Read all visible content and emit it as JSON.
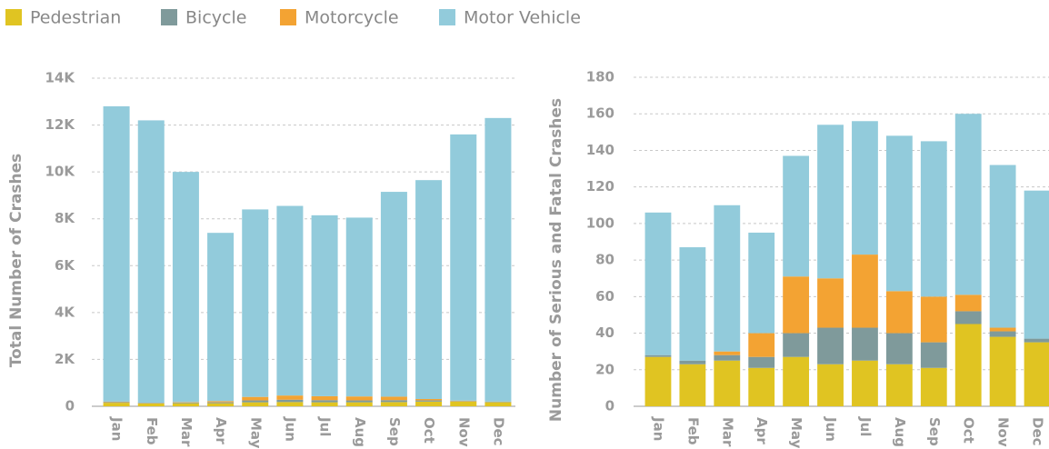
{
  "chart_data": [
    {
      "type": "stacked_bar",
      "y_label": "Total Number of Crashes",
      "categories": [
        "Jan",
        "Feb",
        "Mar",
        "Apr",
        "May",
        "Jun",
        "Jul",
        "Aug",
        "Sep",
        "Oct",
        "Nov",
        "Dec"
      ],
      "series": [
        {
          "name": "Pedestrian",
          "color": "#e0c422",
          "values": [
            150,
            120,
            130,
            130,
            170,
            180,
            170,
            170,
            180,
            200,
            200,
            170
          ]
        },
        {
          "name": "Bicycle",
          "color": "#7f9a9b",
          "values": [
            30,
            20,
            30,
            40,
            80,
            100,
            90,
            80,
            80,
            50,
            20,
            20
          ]
        },
        {
          "name": "Motorcycle",
          "color": "#f3a333",
          "values": [
            20,
            10,
            20,
            50,
            150,
            180,
            170,
            170,
            150,
            60,
            20,
            10
          ]
        },
        {
          "name": "Motor Vehicle",
          "color": "#92cbdb",
          "values": [
            12600,
            12050,
            9820,
            7180,
            8000,
            8090,
            7720,
            7630,
            8740,
            9340,
            11360,
            12100
          ]
        }
      ],
      "ylim": [
        0,
        14000
      ],
      "yticks": [
        0,
        {
          "value": 2000,
          "label": "2K"
        },
        {
          "value": 4000,
          "label": "4K"
        },
        {
          "value": 6000,
          "label": "6K"
        },
        {
          "value": 8000,
          "label": "8K"
        },
        {
          "value": 10000,
          "label": "10K"
        },
        {
          "value": 12000,
          "label": "12K"
        },
        {
          "value": 14000,
          "label": "14K"
        }
      ],
      "grid": true
    },
    {
      "type": "stacked_bar",
      "y_label": "Number of Serious and Fatal Crashes",
      "categories": [
        "Jan",
        "Feb",
        "Mar",
        "Apr",
        "May",
        "Jun",
        "Jul",
        "Aug",
        "Sep",
        "Oct",
        "Nov",
        "Dec"
      ],
      "series": [
        {
          "color": "#e0c422",
          "values": [
            27,
            23,
            25,
            21,
            27,
            23,
            25,
            23,
            21,
            45,
            38,
            35
          ]
        },
        {
          "color": "#7f9a9b",
          "values": [
            1,
            2,
            3,
            6,
            13,
            20,
            18,
            17,
            14,
            7,
            3,
            2
          ]
        },
        {
          "color": "#f3a333",
          "values": [
            0,
            0,
            2,
            13,
            31,
            27,
            40,
            23,
            25,
            9,
            2,
            0
          ]
        },
        {
          "color": "#92cbdb",
          "values": [
            78,
            62,
            80,
            55,
            66,
            84,
            73,
            85,
            85,
            99,
            89,
            81
          ]
        }
      ],
      "ylim": [
        0,
        180
      ],
      "yticks": [
        0,
        20,
        40,
        60,
        80,
        100,
        120,
        140,
        160,
        180
      ],
      "grid": true
    }
  ]
}
